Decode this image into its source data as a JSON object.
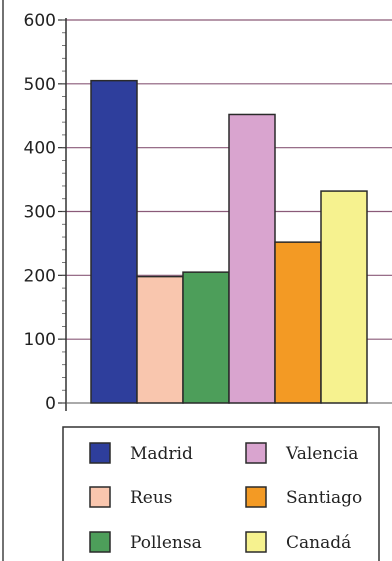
{
  "chart_data": {
    "type": "bar",
    "title": "",
    "xlabel": "",
    "ylabel": "",
    "categories": [
      "Madrid",
      "Reus",
      "Pollensa",
      "Valencia",
      "Santiago",
      "Canadá"
    ],
    "values": [
      505,
      198,
      205,
      452,
      252,
      332
    ],
    "ylim": [
      0,
      600
    ],
    "yticks": [
      "0",
      "100",
      "200",
      "300",
      "400",
      "500",
      "600"
    ],
    "grid": "horizontal",
    "legend_position": "bottom",
    "legend": [
      {
        "label": "Madrid",
        "color": "#2E3E9C"
      },
      {
        "label": "Valencia",
        "color": "#D9A4CF"
      },
      {
        "label": "Reus",
        "color": "#F9C6AE"
      },
      {
        "label": "Santiago",
        "color": "#F39A24"
      },
      {
        "label": "Pollensa",
        "color": "#4D9E5A"
      },
      {
        "label": "Canadá",
        "color": "#F6F28F"
      }
    ],
    "colors": [
      "#2E3E9C",
      "#F9C6AE",
      "#4D9E5A",
      "#D9A4CF",
      "#F39A24",
      "#F6F28F"
    ]
  }
}
